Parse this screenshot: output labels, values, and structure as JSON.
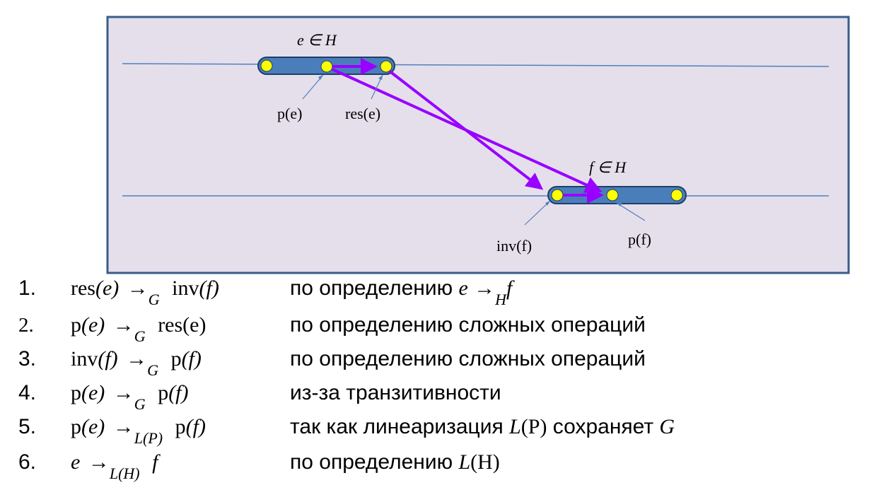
{
  "diagram": {
    "label_e_in_H": "e ∈ H",
    "label_f_in_H": "f ∈ H",
    "label_p_e": "p(e)",
    "label_res_e": "res(e)",
    "label_inv_f": "inv(f)",
    "label_p_f": "p(f)",
    "colors": {
      "frame_fill": "#e5dfec",
      "frame_border": "#385d8a",
      "timeline": "#4f81bd",
      "operation_bar": "#4a7ebb",
      "operation_bar_border": "#1f3f66",
      "point": "#ffff00",
      "arrow": "#9900ff"
    }
  },
  "steps": [
    {
      "num": "1.",
      "lhs": "res",
      "lhs_arg": "(e)",
      "sub": "G",
      "rhs": "inv",
      "rhs_arg": "(f)",
      "desc": "по определению ",
      "desc_math_e": "e",
      "desc_sub": "H",
      "desc_math_f": "f"
    },
    {
      "num": "2.",
      "lhs": "p",
      "lhs_arg": "(e)",
      "sub": "G",
      "rhs": "res",
      "rhs_arg": "(e)",
      "desc": "по определению сложных операций"
    },
    {
      "num": "3.",
      "lhs": "inv",
      "lhs_arg": "(f)",
      "sub": "G",
      "rhs": "p",
      "rhs_arg": "(f)",
      "desc": "по определению сложных операций"
    },
    {
      "num": "4.",
      "lhs": "p",
      "lhs_arg": "(e)",
      "sub": "G",
      "rhs": "p",
      "rhs_arg": "(f)",
      "desc": "из-за транзитивности"
    },
    {
      "num": "5.",
      "lhs": "p",
      "lhs_arg": "(e)",
      "sub": "L(P)",
      "rhs": "p",
      "rhs_arg": "(f)",
      "desc_a": "так как линеаризация ",
      "desc_math_a": "L",
      "desc_math_a_arg": "(P)",
      "desc_b": " сохраняет ",
      "desc_math_b": "G"
    },
    {
      "num": "6.",
      "lhs": "e",
      "sub": "L(H)",
      "rhs": "f",
      "desc": "по определению ",
      "desc_math_a": "L",
      "desc_math_a_arg": "(H)"
    }
  ]
}
